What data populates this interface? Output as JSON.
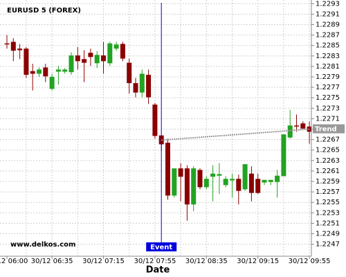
{
  "chart_data": {
    "type": "candlestick",
    "title": "EURUSD 5 (FOREX)",
    "watermark": "www.delkos.com",
    "x_label": "Date",
    "categories": [
      "30/12 06:00",
      null,
      null,
      null,
      null,
      null,
      null,
      "30/12 06:35",
      null,
      null,
      null,
      null,
      null,
      null,
      null,
      "30/12 07:15",
      null,
      null,
      null,
      null,
      null,
      null,
      null,
      "30/12 07:55",
      null,
      null,
      null,
      null,
      null,
      null,
      null,
      "30/12 08:35",
      null,
      null,
      null,
      null,
      null,
      null,
      null,
      "30/12 09:15",
      null,
      null,
      null,
      null,
      null,
      null,
      null,
      "30/12 09:55"
    ],
    "open": [
      1.22854,
      1.22857,
      1.22844,
      1.22844,
      1.22801,
      1.22796,
      1.22808,
      1.22767,
      1.228,
      1.228,
      1.22799,
      1.22831,
      1.22824,
      1.22836,
      1.22816,
      1.22831,
      1.22816,
      1.22844,
      1.22853,
      1.22817,
      1.22778,
      1.2276,
      1.22794,
      1.22737,
      1.22678,
      1.22664,
      1.22563,
      1.22615,
      1.22615,
      1.22546,
      1.22612,
      1.22579,
      1.22599,
      1.22601,
      1.22583,
      1.22592,
      1.22595,
      1.22575,
      1.22605,
      1.22595,
      1.22588,
      1.22589,
      1.22589,
      1.226,
      1.22674,
      1.22697,
      1.22701,
      1.22695
    ],
    "high": [
      1.2287,
      1.22864,
      1.22853,
      1.22847,
      1.22815,
      1.22808,
      1.22815,
      1.22796,
      1.22811,
      1.22807,
      1.22837,
      1.22847,
      1.22841,
      1.22844,
      1.22839,
      1.22857,
      1.22857,
      1.22857,
      1.22857,
      1.22825,
      1.22788,
      1.22804,
      1.22804,
      1.2274,
      1.22678,
      1.22672,
      1.22615,
      1.22625,
      1.22621,
      1.22619,
      1.22615,
      1.226,
      1.22621,
      1.22625,
      1.226,
      1.22605,
      1.22603,
      1.22623,
      1.22619,
      1.22605,
      1.22593,
      1.22593,
      1.22612,
      1.2268,
      1.22727,
      1.22718,
      1.22705,
      1.22705
    ],
    "low": [
      1.22844,
      1.2282,
      1.22824,
      1.22788,
      1.22764,
      1.2279,
      1.2278,
      1.22764,
      1.22775,
      1.22796,
      1.22794,
      1.22804,
      1.2278,
      1.22811,
      1.22807,
      1.22796,
      1.22811,
      1.2284,
      1.2282,
      1.22758,
      1.22751,
      1.22751,
      1.22738,
      1.22672,
      1.22648,
      1.22555,
      1.22559,
      1.22552,
      1.22515,
      1.22533,
      1.22575,
      1.22575,
      1.22552,
      1.22566,
      1.22579,
      1.22559,
      1.22546,
      1.22572,
      1.22552,
      1.22566,
      1.22583,
      1.22583,
      1.22559,
      1.226,
      1.22672,
      1.22685,
      1.22691,
      1.22662
    ],
    "close": [
      1.22852,
      1.2284,
      1.22841,
      1.22794,
      1.22796,
      1.22804,
      1.22791,
      1.2279,
      1.22804,
      1.22804,
      1.22831,
      1.2282,
      1.22817,
      1.22828,
      1.22832,
      1.2282,
      1.22854,
      1.22852,
      1.22825,
      1.22778,
      1.2276,
      1.22796,
      1.22751,
      1.22677,
      1.22661,
      1.22563,
      1.22615,
      1.22599,
      1.22546,
      1.22615,
      1.22579,
      1.22595,
      1.22605,
      1.22604,
      1.22595,
      1.22595,
      1.22572,
      1.22623,
      1.22568,
      1.22568,
      1.22593,
      1.22593,
      1.22601,
      1.2268,
      1.22697,
      1.22695,
      1.22691,
      1.22685
    ],
    "up_color": "#22a322",
    "down_color": "#8b0000",
    "ylim": [
      1.22447,
      1.22937
    ],
    "yticks": [
      1.2293,
      1.2291,
      1.2289,
      1.2287,
      1.2285,
      1.2283,
      1.2281,
      1.2279,
      1.2277,
      1.2275,
      1.2273,
      1.2271,
      1.2269,
      1.2267,
      1.2265,
      1.2263,
      1.2261,
      1.2259,
      1.2257,
      1.2255,
      1.2253,
      1.2251,
      1.2249,
      1.2247
    ],
    "grid": true,
    "event": {
      "label": "Event",
      "x": 24,
      "color": "#0000dd"
    },
    "trend": {
      "label": "Trend",
      "x": [
        24,
        47
      ],
      "values": [
        1.22669,
        1.2269
      ],
      "color": "#999999"
    }
  }
}
